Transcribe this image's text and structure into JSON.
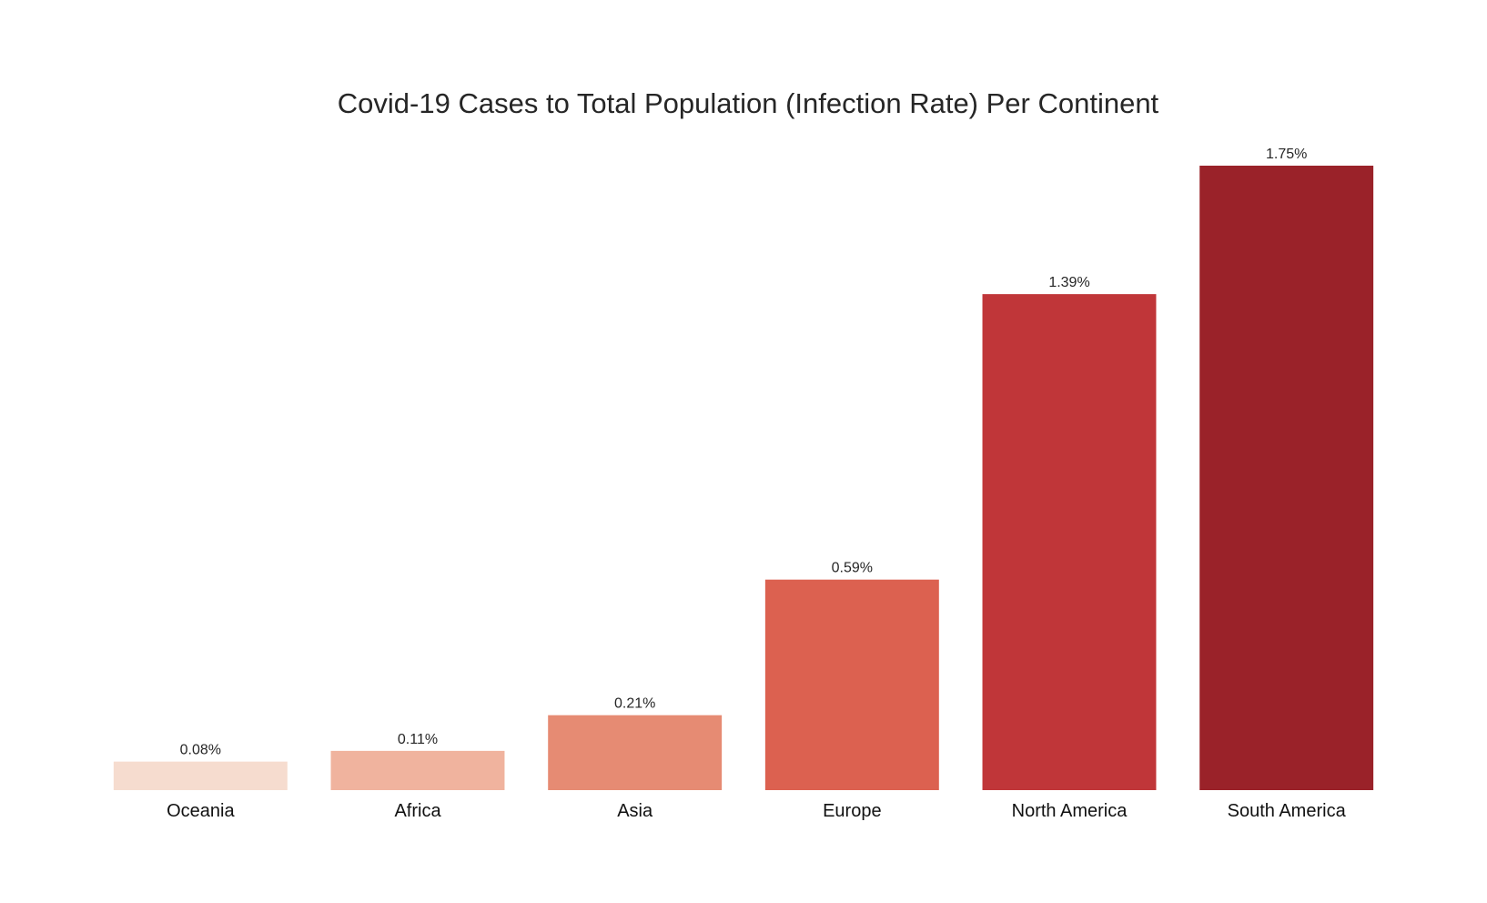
{
  "chart_data": {
    "type": "bar",
    "title": "Covid-19 Cases to Total Population (Infection Rate) Per Continent",
    "xlabel": "",
    "ylabel": "",
    "categories": [
      "Oceania",
      "Africa",
      "Asia",
      "Europe",
      "North America",
      "South America"
    ],
    "values": [
      0.08,
      0.11,
      0.21,
      0.59,
      1.39,
      1.75
    ],
    "value_labels": [
      "0.08%",
      "0.11%",
      "0.21%",
      "0.59%",
      "1.39%",
      "1.75%"
    ],
    "colors": [
      "#f6dccf",
      "#f0b39e",
      "#e68b73",
      "#dc6150",
      "#c03639",
      "#9a2229"
    ],
    "ylim": [
      0,
      1.75
    ],
    "y_axis_visible": false,
    "grid": false,
    "legend": "none"
  }
}
